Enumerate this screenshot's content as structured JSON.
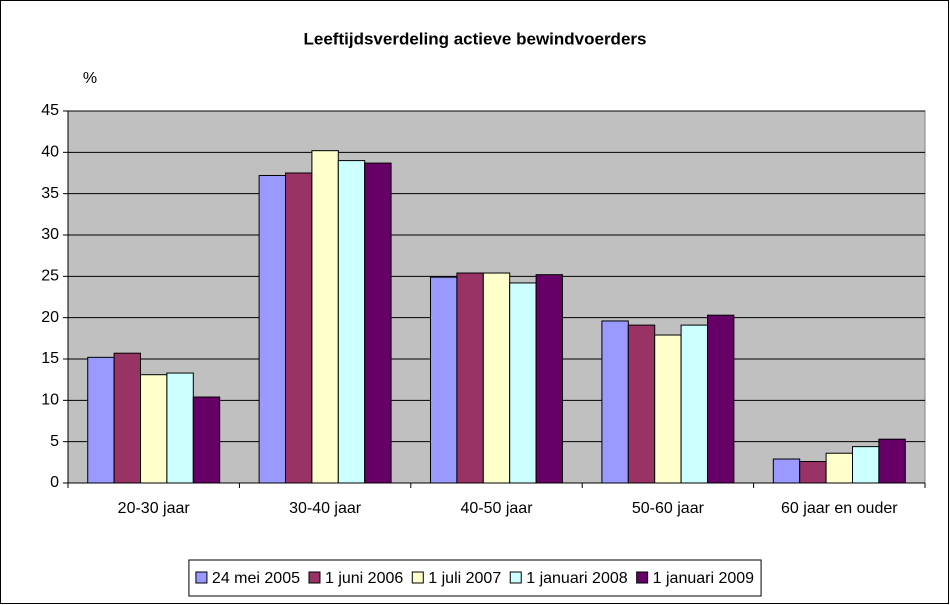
{
  "chart_data": {
    "type": "bar",
    "title": "Leeftijdsverdeling actieve bewindvoerders",
    "y_label": "%",
    "categories": [
      "20-30 jaar",
      "30-40 jaar",
      "40-50 jaar",
      "50-60 jaar",
      "60 jaar en ouder"
    ],
    "series": [
      {
        "name": "24 mei 2005",
        "color": "#9999ff",
        "values": [
          15.2,
          37.2,
          24.9,
          19.6,
          2.9
        ]
      },
      {
        "name": "1 juni 2006",
        "color": "#993366",
        "values": [
          15.7,
          37.5,
          25.4,
          19.1,
          2.6
        ]
      },
      {
        "name": "1 juli 2007",
        "color": "#ffffcc",
        "values": [
          13.1,
          40.2,
          25.4,
          17.9,
          3.6
        ]
      },
      {
        "name": "1 januari 2008",
        "color": "#ccffff",
        "values": [
          13.3,
          39.0,
          24.2,
          19.1,
          4.4
        ]
      },
      {
        "name": "1 januari 2009",
        "color": "#660066",
        "values": [
          10.4,
          38.7,
          25.2,
          20.3,
          5.3
        ]
      }
    ],
    "ylim": [
      0,
      45
    ],
    "yticks": [
      0,
      5,
      10,
      15,
      20,
      25,
      30,
      35,
      40,
      45
    ],
    "grid": true,
    "legend": "bottom",
    "plot_background": "#c0c0c0"
  }
}
